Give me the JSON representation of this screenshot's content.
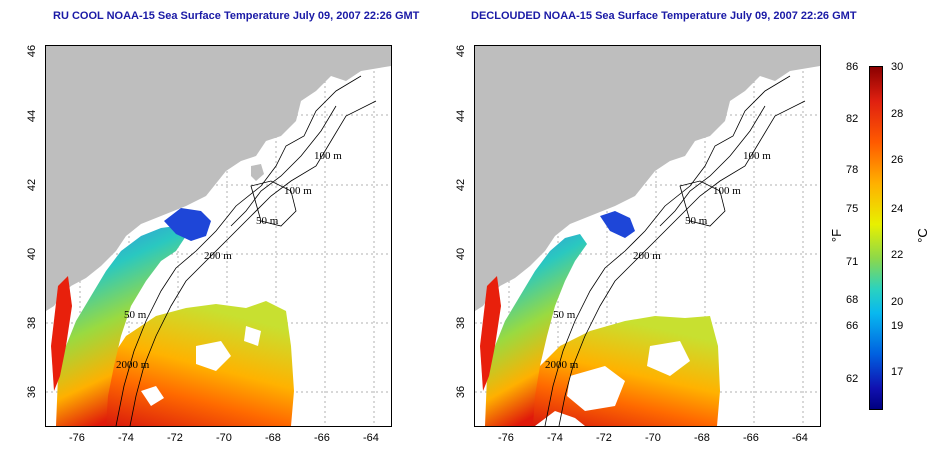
{
  "left_title": "RU COOL NOAA-15 Sea Surface Temperature July 09, 2007 22:26 GMT",
  "right_title": "DECLOUDED NOAA-15 Sea Surface Temperature July 09, 2007 22:26 GMT",
  "x_ticks": [
    "-76",
    "-74",
    "-72",
    "-70",
    "-68",
    "-66",
    "-64"
  ],
  "y_ticks": [
    "46",
    "44",
    "42",
    "40",
    "38",
    "36"
  ],
  "contours": {
    "c100a": "100 m",
    "c100b": "100 m",
    "c50": "50 m",
    "c200": "200 m",
    "c50b": "50 m",
    "c2000": "2000 m"
  },
  "colorbar": {
    "fahrenheit_label": "°F",
    "celsius_label": "°C",
    "fahrenheit_ticks": [
      "86",
      "82",
      "78",
      "75",
      "71",
      "68",
      "66",
      "62"
    ],
    "celsius_ticks": [
      "30",
      "28",
      "26",
      "24",
      "22",
      "20",
      "19",
      "17"
    ]
  },
  "colors": {
    "land": "#bebebe",
    "title": "#1a1aa6",
    "grid": "#b0b0b0"
  }
}
